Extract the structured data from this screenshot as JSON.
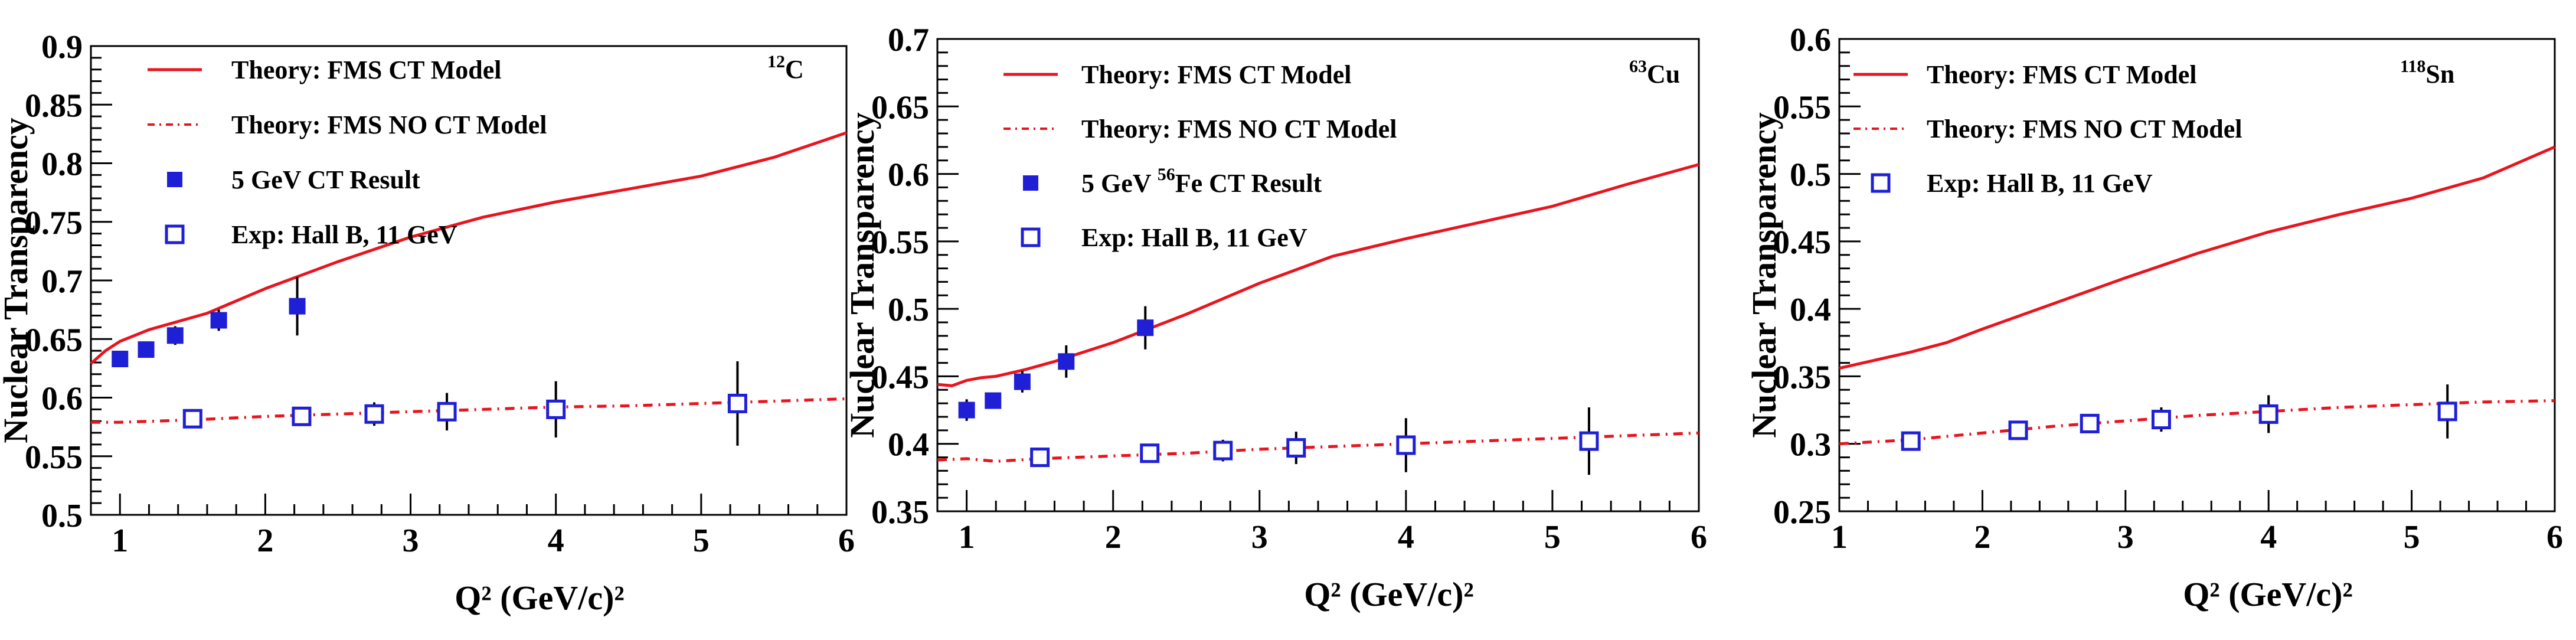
{
  "chart_data": [
    {
      "type": "line",
      "panel": "carbon",
      "xlabel": "Q² (GeV/c)²",
      "ylabel": "Nuclear Transparency",
      "xlim": [
        0.8,
        6
      ],
      "ylim": [
        0.5,
        0.9
      ],
      "xticks": [
        1,
        2,
        3,
        4,
        5,
        6
      ],
      "yticks": [
        0.5,
        0.55,
        0.6,
        0.65,
        0.7,
        0.75,
        0.8,
        0.85,
        0.9
      ],
      "ytick_labels": [
        "0.5",
        "0.55",
        "0.6",
        "0.65",
        "0.7",
        "0.75",
        "0.8",
        "0.85",
        "0.9"
      ],
      "nucleus": {
        "mass": "12",
        "symbol": "C"
      },
      "legend": [
        {
          "label": "Theory: FMS CT Model",
          "style": "solid-line"
        },
        {
          "label": "Theory: FMS NO CT Model",
          "style": "dashdot-line"
        },
        {
          "label": "5 GeV CT Result",
          "style": "filled-square"
        },
        {
          "label": "Exp: Hall B,  11 GeV",
          "style": "open-square"
        }
      ],
      "series": [
        {
          "name": "Theory: FMS CT Model",
          "kind": "line",
          "dash": "solid",
          "color": "#e8141e",
          "x": [
            0.8,
            0.9,
            1.0,
            1.2,
            1.4,
            1.6,
            2.0,
            2.5,
            3.0,
            3.5,
            4.0,
            4.5,
            5.0,
            5.5,
            6.0
          ],
          "y": [
            0.629,
            0.64,
            0.648,
            0.658,
            0.665,
            0.672,
            0.693,
            0.716,
            0.737,
            0.754,
            0.767,
            0.778,
            0.789,
            0.805,
            0.826
          ]
        },
        {
          "name": "Theory: FMS NO CT Model",
          "kind": "line",
          "dash": "dashdot",
          "color": "#e8141e",
          "x": [
            0.8,
            1.0,
            1.5,
            2.0,
            2.5,
            3.0,
            3.5,
            4.0,
            4.5,
            5.0,
            5.5,
            6.0
          ],
          "y": [
            0.579,
            0.579,
            0.581,
            0.584,
            0.586,
            0.588,
            0.59,
            0.592,
            0.593,
            0.595,
            0.597,
            0.599
          ]
        },
        {
          "name": "5 GeV CT Result",
          "kind": "points",
          "marker": "filled-square",
          "color": "#1f1fd6",
          "x": [
            1.0,
            1.18,
            1.38,
            1.68,
            2.22
          ],
          "y": [
            0.633,
            0.641,
            0.653,
            0.666,
            0.678
          ],
          "err": [
            0.005,
            0.006,
            0.008,
            0.009,
            0.025
          ]
        },
        {
          "name": "Exp: Hall B,  11 GeV",
          "kind": "points",
          "marker": "open-square",
          "color": "#1f1fd6",
          "x": [
            1.5,
            2.25,
            2.75,
            3.25,
            4.0,
            5.25
          ],
          "y": [
            0.582,
            0.584,
            0.586,
            0.588,
            0.59,
            0.595
          ],
          "err": [
            0.004,
            0.007,
            0.01,
            0.016,
            0.024,
            0.036
          ]
        }
      ]
    },
    {
      "type": "line",
      "panel": "copper",
      "xlabel": "Q² (GeV/c)²",
      "ylabel": "Nuclear Transparency",
      "xlim": [
        0.8,
        6
      ],
      "ylim": [
        0.35,
        0.7
      ],
      "xticks": [
        1,
        2,
        3,
        4,
        5,
        6
      ],
      "yticks": [
        0.35,
        0.4,
        0.45,
        0.5,
        0.55,
        0.6,
        0.65,
        0.7
      ],
      "ytick_labels": [
        "0.35",
        "0.4",
        "0.45",
        "0.5",
        "0.55",
        "0.6",
        "0.65",
        "0.7"
      ],
      "nucleus": {
        "mass": "63",
        "symbol": "Cu"
      },
      "legend": [
        {
          "label": "Theory: FMS CT Model",
          "style": "solid-line"
        },
        {
          "label": "Theory: FMS NO CT Model",
          "style": "dashdot-line"
        },
        {
          "label_pre": "5 GeV ",
          "label_sup": "56",
          "label_post": "Fe CT Result",
          "style": "filled-square"
        },
        {
          "label": "Exp: Hall B,  11 GeV",
          "style": "open-square"
        }
      ],
      "series": [
        {
          "name": "Theory: FMS CT Model",
          "kind": "line",
          "dash": "solid",
          "color": "#e8141e",
          "x": [
            0.8,
            0.9,
            1.0,
            1.1,
            1.2,
            1.4,
            1.6,
            2.0,
            2.5,
            3.0,
            3.5,
            4.0,
            4.5,
            5.0,
            5.5,
            6.0
          ],
          "y": [
            0.444,
            0.443,
            0.447,
            0.449,
            0.45,
            0.455,
            0.461,
            0.475,
            0.496,
            0.519,
            0.539,
            0.552,
            0.564,
            0.576,
            0.592,
            0.607
          ]
        },
        {
          "name": "Theory: FMS NO CT Model",
          "kind": "line",
          "dash": "dashdot",
          "color": "#e8141e",
          "x": [
            0.8,
            1.0,
            1.2,
            1.5,
            2.0,
            2.5,
            3.0,
            3.5,
            4.0,
            4.5,
            5.0,
            5.5,
            6.0
          ],
          "y": [
            0.388,
            0.389,
            0.387,
            0.389,
            0.391,
            0.393,
            0.396,
            0.398,
            0.4,
            0.402,
            0.404,
            0.406,
            0.408
          ]
        },
        {
          "name": "5 GeV 56Fe CT Result",
          "kind": "points",
          "marker": "filled-square",
          "color": "#1f1fd6",
          "x": [
            1.0,
            1.18,
            1.38,
            1.68,
            2.22
          ],
          "y": [
            0.425,
            0.432,
            0.446,
            0.461,
            0.486
          ],
          "err": [
            0.008,
            0.006,
            0.008,
            0.012,
            0.016
          ]
        },
        {
          "name": "Exp: Hall B,  11 GeV",
          "kind": "points",
          "marker": "open-square",
          "color": "#1f1fd6",
          "x": [
            1.5,
            2.25,
            2.75,
            3.25,
            4.0,
            5.25
          ],
          "y": [
            0.39,
            0.393,
            0.395,
            0.397,
            0.399,
            0.402
          ],
          "err": [
            0.003,
            0.006,
            0.008,
            0.012,
            0.02,
            0.025
          ]
        }
      ]
    },
    {
      "type": "line",
      "panel": "tin",
      "xlabel": "Q² (GeV/c)²",
      "ylabel": "Nuclear Transparency",
      "xlim": [
        1,
        6
      ],
      "ylim": [
        0.25,
        0.6
      ],
      "xticks": [
        1,
        2,
        3,
        4,
        5,
        6
      ],
      "yticks": [
        0.25,
        0.3,
        0.35,
        0.4,
        0.45,
        0.5,
        0.55,
        0.6
      ],
      "ytick_labels": [
        "0.25",
        "0.3",
        "0.35",
        "0.4",
        "0.45",
        "0.5",
        "0.55",
        "0.6"
      ],
      "nucleus": {
        "mass": "118",
        "symbol": "Sn"
      },
      "legend": [
        {
          "label": "Theory: FMS CT Model",
          "style": "solid-line"
        },
        {
          "label": "Theory: FMS NO CT Model",
          "style": "dashdot-line"
        },
        {
          "label": "Exp: Hall B,  11 GeV",
          "style": "open-square"
        }
      ],
      "series": [
        {
          "name": "Theory: FMS CT Model",
          "kind": "line",
          "dash": "solid",
          "color": "#e8141e",
          "x": [
            1.0,
            1.25,
            1.5,
            1.75,
            2.0,
            2.5,
            3.0,
            3.5,
            4.0,
            4.5,
            5.0,
            5.5,
            6.0
          ],
          "y": [
            0.356,
            0.362,
            0.368,
            0.375,
            0.385,
            0.404,
            0.423,
            0.441,
            0.457,
            0.47,
            0.482,
            0.497,
            0.52
          ]
        },
        {
          "name": "Theory: FMS NO CT Model",
          "kind": "line",
          "dash": "dashdot",
          "color": "#e8141e",
          "x": [
            1.0,
            1.5,
            2.0,
            2.5,
            3.0,
            3.5,
            4.0,
            4.5,
            5.0,
            5.5,
            6.0
          ],
          "y": [
            0.3,
            0.303,
            0.308,
            0.313,
            0.317,
            0.321,
            0.324,
            0.327,
            0.329,
            0.331,
            0.332
          ]
        },
        {
          "name": "Exp: Hall B,  11 GeV",
          "kind": "points",
          "marker": "open-square",
          "color": "#1f1fd6",
          "x": [
            1.5,
            2.25,
            2.75,
            3.25,
            4.0,
            5.25
          ],
          "y": [
            0.302,
            0.31,
            0.315,
            0.318,
            0.322,
            0.324
          ],
          "err": [
            0.003,
            0.004,
            0.005,
            0.009,
            0.014,
            0.02
          ]
        }
      ]
    }
  ]
}
